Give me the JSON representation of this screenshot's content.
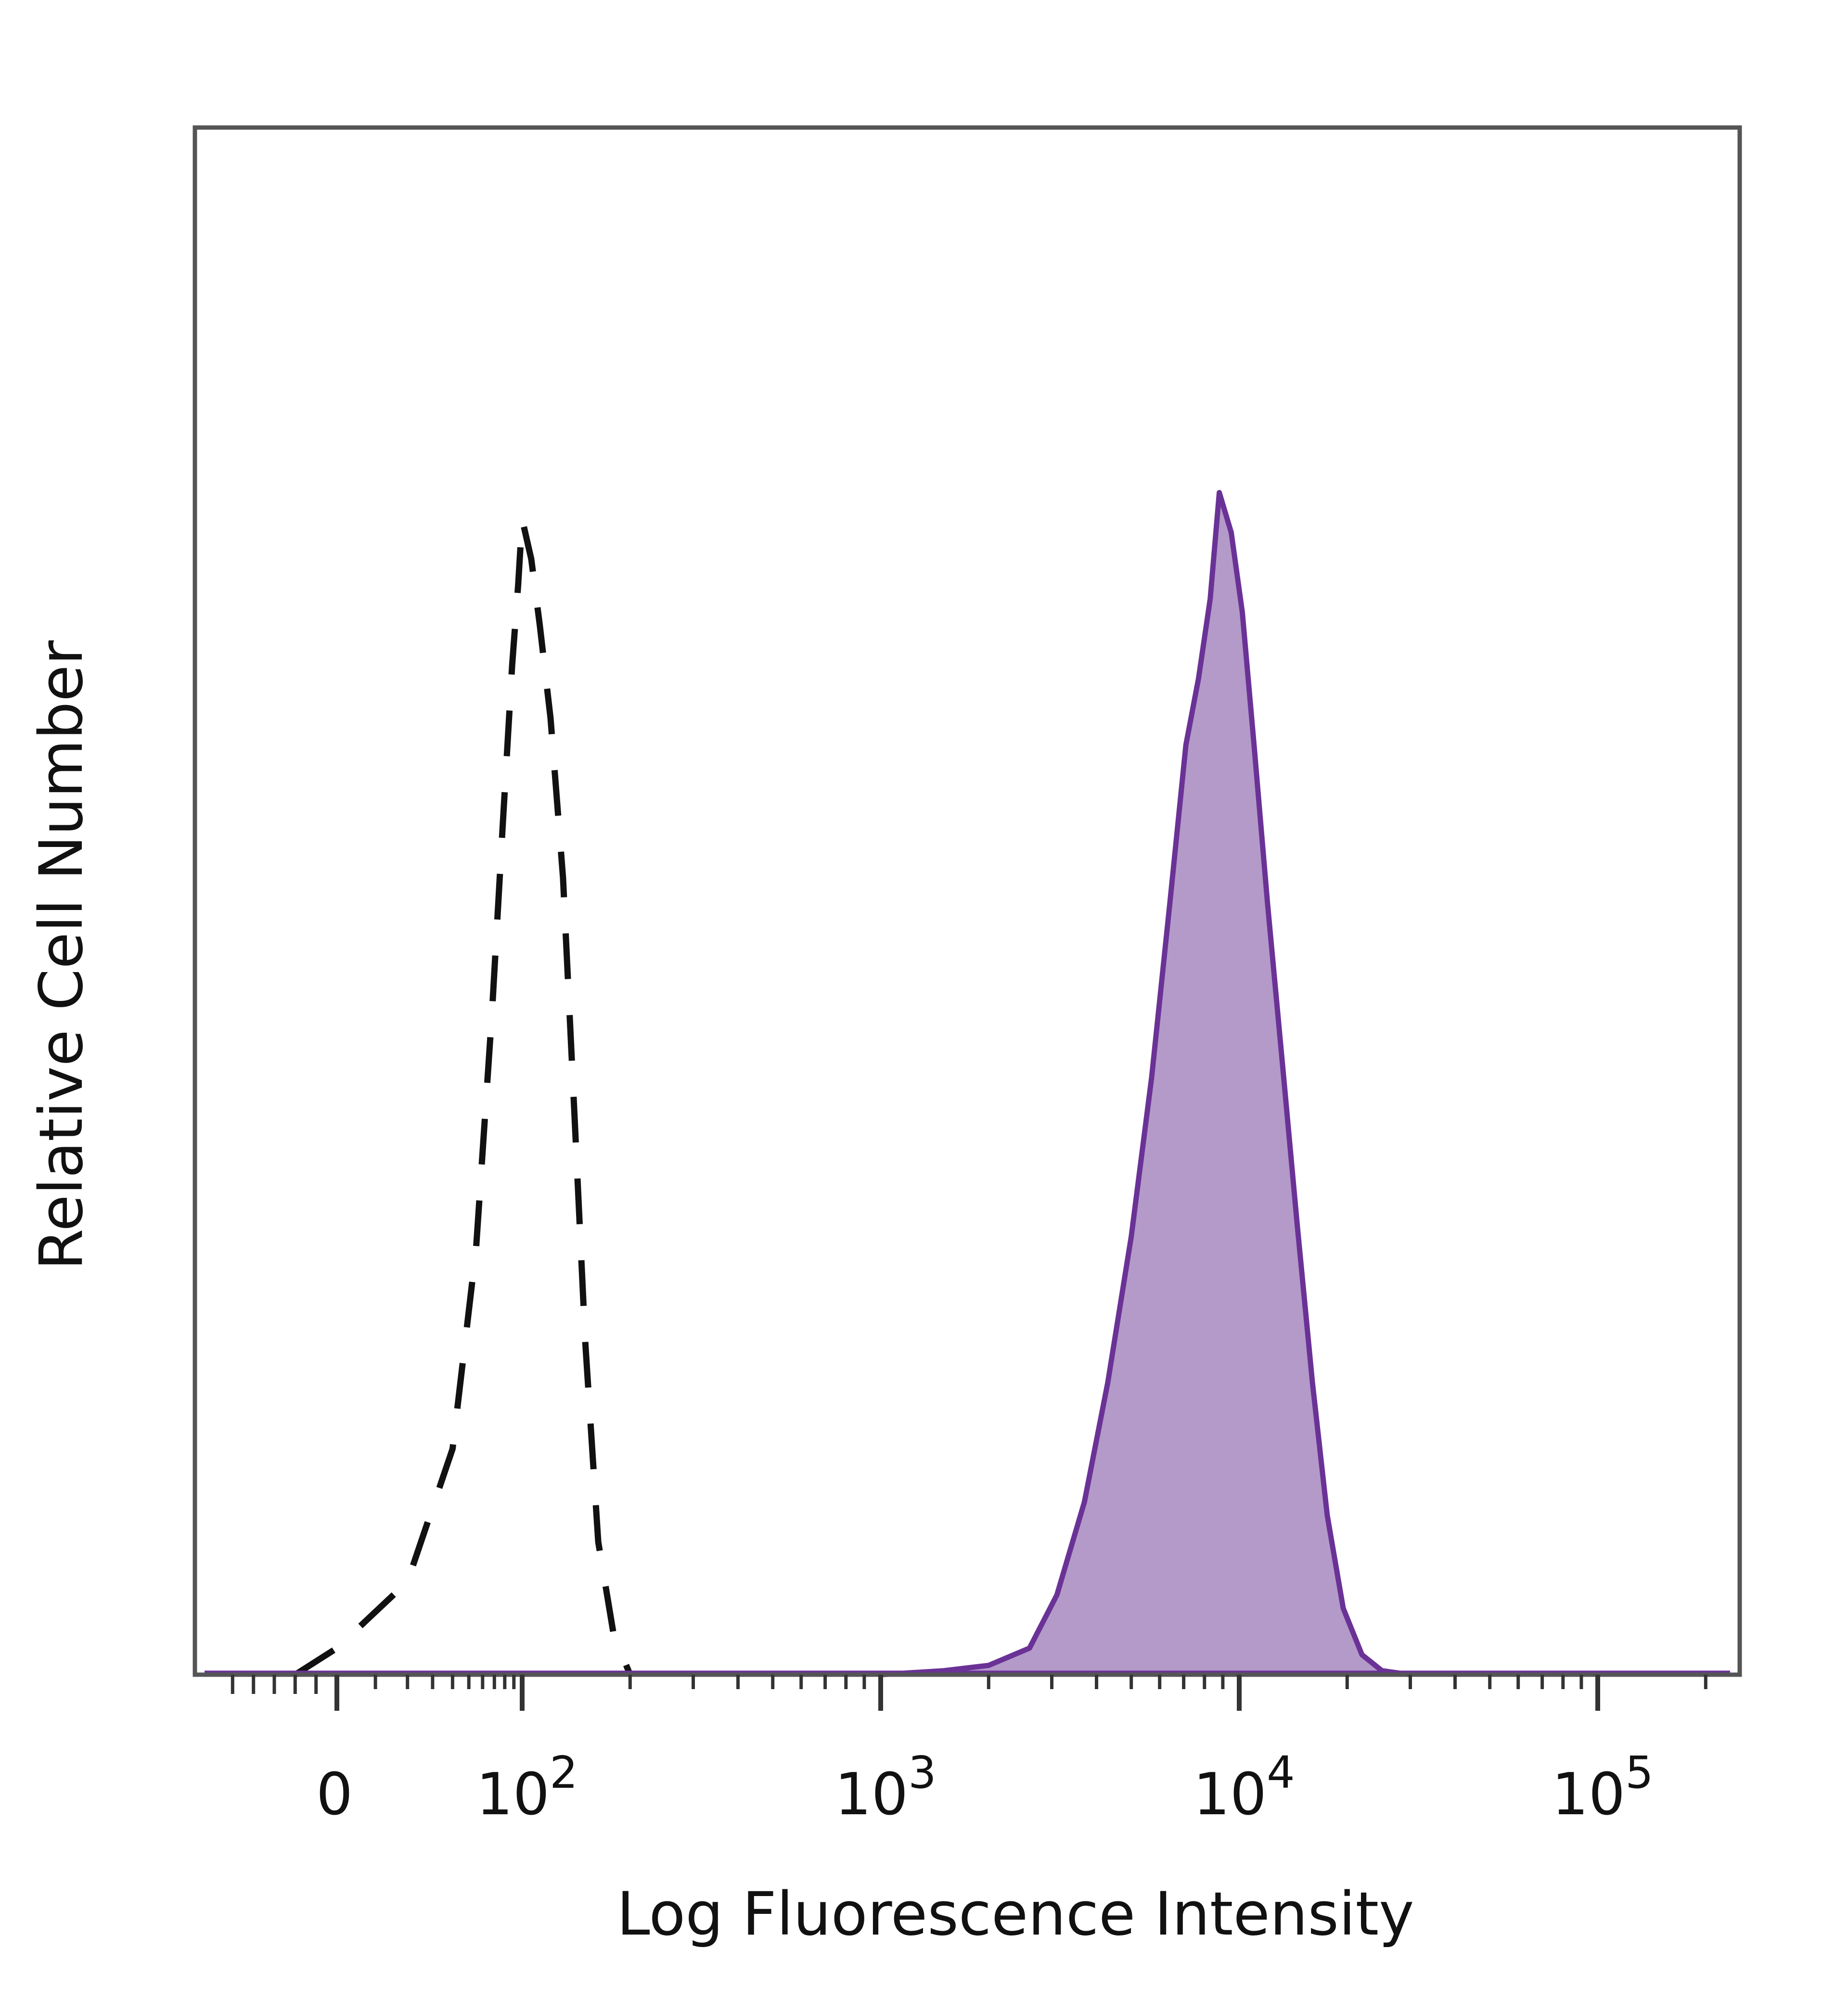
{
  "chart_data": {
    "type": "area",
    "title": "",
    "xlabel": "Log Fluorescence Intensity",
    "ylabel": "Relative Cell Number",
    "x_scale": "biexponential",
    "x_ticks": [
      {
        "value": 0,
        "label": "0",
        "base": "0",
        "exp": ""
      },
      {
        "value": 100,
        "label": "10^2",
        "base": "10",
        "exp": "2"
      },
      {
        "value": 1000,
        "label": "10^3",
        "base": "10",
        "exp": "3"
      },
      {
        "value": 10000,
        "label": "10^4",
        "base": "10",
        "exp": "4"
      },
      {
        "value": 100000,
        "label": "10^5",
        "base": "10",
        "exp": "5"
      }
    ],
    "xlim": [
      -60,
      250000
    ],
    "ylim": [
      0,
      100
    ],
    "y_ticks_shown": false,
    "grid": false,
    "legend": "none",
    "series": [
      {
        "style": "dashed-outline",
        "color": "#111111",
        "points": [
          [
            -20,
            0
          ],
          [
            0,
            2
          ],
          [
            20,
            7
          ],
          [
            40,
            17
          ],
          [
            55,
            32
          ],
          [
            68,
            50
          ],
          [
            78,
            64
          ],
          [
            88,
            76
          ],
          [
            95,
            82
          ],
          [
            100,
            87
          ],
          [
            106,
            84
          ],
          [
            112,
            79
          ],
          [
            120,
            72
          ],
          [
            130,
            60
          ],
          [
            140,
            42
          ],
          [
            150,
            25
          ],
          [
            163,
            10
          ],
          [
            180,
            3
          ],
          [
            200,
            0
          ]
        ]
      },
      {
        "style": "filled",
        "color": "#6a3296",
        "fill": "#b49ac8",
        "points": [
          [
            1000,
            0
          ],
          [
            1500,
            0.3
          ],
          [
            2000,
            0.7
          ],
          [
            2600,
            2
          ],
          [
            3100,
            6
          ],
          [
            3700,
            13
          ],
          [
            4300,
            22
          ],
          [
            5000,
            33
          ],
          [
            5700,
            45
          ],
          [
            6400,
            58
          ],
          [
            7100,
            70
          ],
          [
            7700,
            75
          ],
          [
            8300,
            81
          ],
          [
            8800,
            89
          ],
          [
            9500,
            86
          ],
          [
            10200,
            80
          ],
          [
            11000,
            70
          ],
          [
            12000,
            58
          ],
          [
            13200,
            46
          ],
          [
            14500,
            34
          ],
          [
            16000,
            22
          ],
          [
            17600,
            12
          ],
          [
            19500,
            5
          ],
          [
            22000,
            1.5
          ],
          [
            25000,
            0.3
          ],
          [
            30000,
            0
          ]
        ]
      }
    ]
  }
}
